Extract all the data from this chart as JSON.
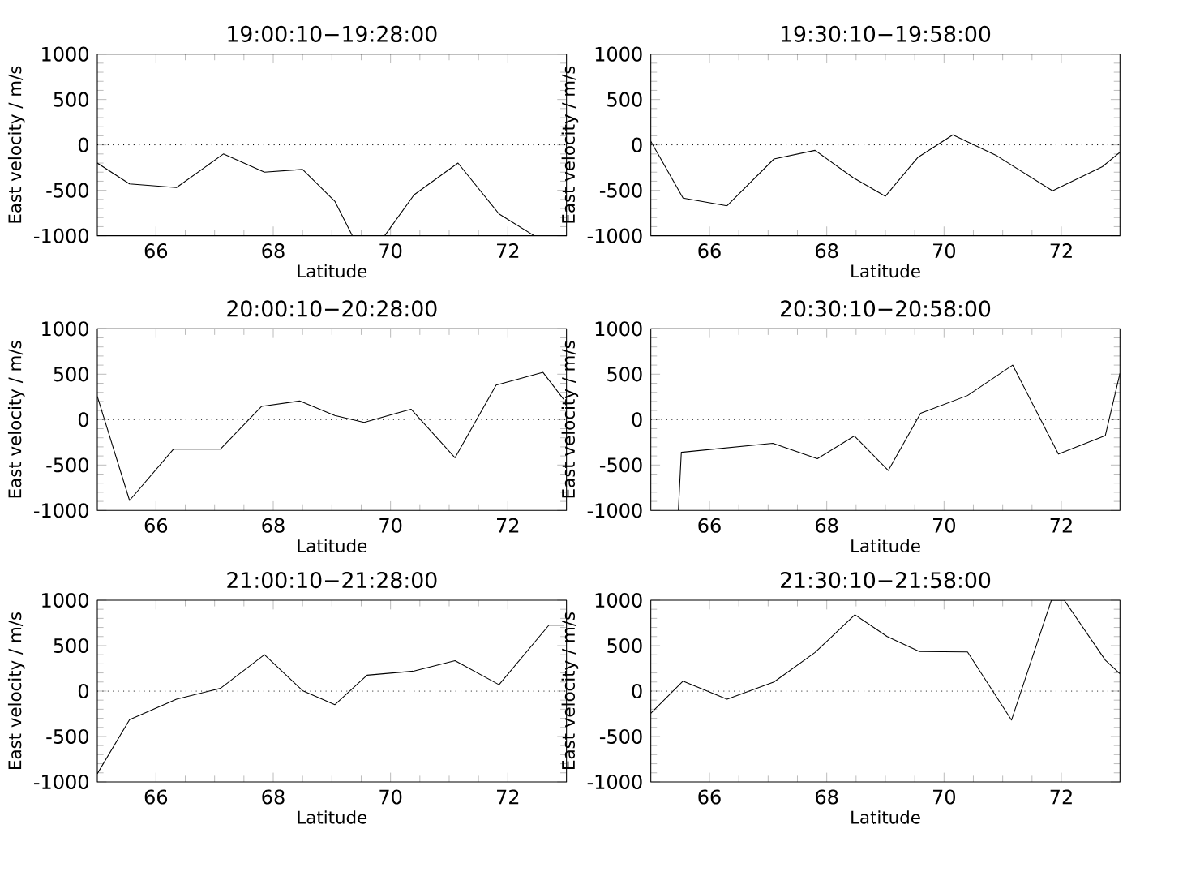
{
  "chart_data": [
    {
      "type": "line",
      "title": "19:00:10−19:28:00",
      "xlabel": "Latitude",
      "ylabel": "East velocity / m/s",
      "xlim": [
        65,
        73
      ],
      "ylim": [
        -1000,
        1000
      ],
      "xticks": [
        66,
        68,
        70,
        72
      ],
      "yticks": [
        -1000,
        -500,
        0,
        500,
        1000
      ],
      "ref_lines": [
        {
          "axis": "y",
          "value": 0,
          "line_style": "dotted"
        }
      ],
      "x": [
        65.0,
        65.55,
        66.35,
        67.15,
        67.85,
        68.5,
        69.05,
        69.35,
        69.9,
        70.4,
        71.15,
        71.85,
        72.45
      ],
      "series": [
        {
          "color": "#000000",
          "values": [
            -200,
            -430,
            -470,
            -100,
            -300,
            -270,
            -620,
            -1000,
            -1000,
            -550,
            -200,
            -760,
            -1000
          ]
        }
      ]
    },
    {
      "type": "line",
      "title": "19:30:10−19:58:00",
      "xlabel": "Latitude",
      "ylabel": "East velocity / m/s",
      "xlim": [
        65,
        73
      ],
      "ylim": [
        -1000,
        1000
      ],
      "xticks": [
        66,
        68,
        70,
        72
      ],
      "yticks": [
        -1000,
        -500,
        0,
        500,
        1000
      ],
      "ref_lines": [
        {
          "axis": "y",
          "value": 0,
          "line_style": "dotted"
        }
      ],
      "x": [
        65.0,
        65.55,
        66.3,
        67.1,
        67.8,
        68.45,
        69.0,
        69.55,
        70.15,
        70.9,
        71.85,
        72.7,
        73.0
      ],
      "series": [
        {
          "color": "#000000",
          "values": [
            40,
            -585,
            -670,
            -155,
            -60,
            -360,
            -565,
            -140,
            110,
            -120,
            -505,
            -240,
            -80
          ]
        }
      ]
    },
    {
      "type": "line",
      "title": "20:00:10−20:28:00",
      "xlabel": "Latitude",
      "ylabel": "East velocity / m/s",
      "xlim": [
        65,
        73
      ],
      "ylim": [
        -1000,
        1000
      ],
      "xticks": [
        66,
        68,
        70,
        72
      ],
      "yticks": [
        -1000,
        -500,
        0,
        500,
        1000
      ],
      "ref_lines": [
        {
          "axis": "y",
          "value": 0,
          "line_style": "dotted"
        }
      ],
      "x": [
        65.0,
        65.55,
        66.3,
        67.1,
        67.8,
        68.45,
        69.05,
        69.55,
        70.35,
        71.1,
        71.8,
        72.6,
        72.95
      ],
      "series": [
        {
          "color": "#000000",
          "values": [
            255,
            -890,
            -325,
            -325,
            145,
            205,
            45,
            -30,
            115,
            -420,
            380,
            520,
            225
          ]
        }
      ]
    },
    {
      "type": "line",
      "title": "20:30:10−20:58:00",
      "xlabel": "Latitude",
      "ylabel": "East velocity / m/s",
      "xlim": [
        65,
        73
      ],
      "ylim": [
        -1000,
        1000
      ],
      "xticks": [
        66,
        68,
        70,
        72
      ],
      "yticks": [
        -1000,
        -500,
        0,
        500,
        1000
      ],
      "ref_lines": [
        {
          "axis": "y",
          "value": 0,
          "line_style": "dotted"
        }
      ],
      "x": [
        65.47,
        65.52,
        67.08,
        67.84,
        68.47,
        69.05,
        69.6,
        70.4,
        71.17,
        71.95,
        72.75,
        73.0
      ],
      "series": [
        {
          "color": "#000000",
          "values": [
            -1000,
            -360,
            -260,
            -430,
            -180,
            -560,
            70,
            265,
            600,
            -380,
            -175,
            510
          ]
        }
      ]
    },
    {
      "type": "line",
      "title": "21:00:10−21:28:00",
      "xlabel": "Latitude",
      "ylabel": "East velocity / m/s",
      "xlim": [
        65,
        73
      ],
      "ylim": [
        -1000,
        1000
      ],
      "xticks": [
        66,
        68,
        70,
        72
      ],
      "yticks": [
        -1000,
        -500,
        0,
        500,
        1000
      ],
      "ref_lines": [
        {
          "axis": "y",
          "value": 0,
          "line_style": "dotted"
        }
      ],
      "x": [
        65.0,
        65.55,
        66.35,
        67.1,
        67.85,
        68.5,
        69.05,
        69.6,
        70.4,
        71.1,
        71.85,
        72.7,
        72.95
      ],
      "series": [
        {
          "color": "#000000",
          "values": [
            -910,
            -315,
            -90,
            30,
            400,
            5,
            -150,
            175,
            220,
            335,
            70,
            725,
            725
          ]
        }
      ]
    },
    {
      "type": "line",
      "title": "21:30:10−21:58:00",
      "xlabel": "Latitude",
      "ylabel": "East velocity / m/s",
      "xlim": [
        65,
        73
      ],
      "ylim": [
        -1000,
        1000
      ],
      "xticks": [
        66,
        68,
        70,
        72
      ],
      "yticks": [
        -1000,
        -500,
        0,
        500,
        1000
      ],
      "ref_lines": [
        {
          "axis": "y",
          "value": 0,
          "line_style": "dotted"
        }
      ],
      "x": [
        65.0,
        65.55,
        66.3,
        67.1,
        67.8,
        68.48,
        69.03,
        69.58,
        70.4,
        71.15,
        71.83,
        72.05,
        72.75,
        73.0
      ],
      "series": [
        {
          "color": "#000000",
          "values": [
            -245,
            110,
            -90,
            100,
            425,
            840,
            600,
            435,
            430,
            -320,
            1000,
            1000,
            340,
            190
          ]
        }
      ]
    }
  ]
}
